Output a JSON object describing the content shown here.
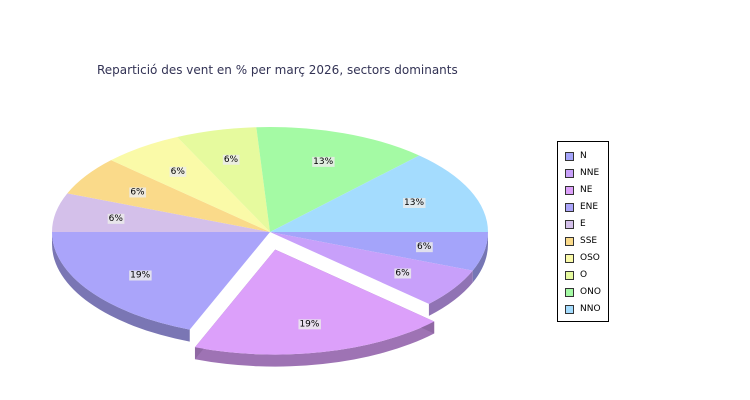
{
  "chart_data": {
    "type": "pie",
    "title": "Repartició des vent en % per març 2026, sectors dominants",
    "categories": [
      "N",
      "NNE",
      "NE",
      "ENE",
      "E",
      "SSE",
      "OSO",
      "O",
      "ONO",
      "NNO"
    ],
    "values": [
      6,
      6,
      19,
      19,
      6,
      6,
      6,
      6,
      13,
      13
    ],
    "labels": [
      "6%",
      "6%",
      "19%",
      "19%",
      "6%",
      "6%",
      "6%",
      "6%",
      "13%",
      "13%"
    ],
    "colors": [
      "#a4a4fa",
      "#c8a0fa",
      "#dca0fa",
      "#aaa4fa",
      "#d4c0ea",
      "#fada8a",
      "#fafaa8",
      "#e6fa9e",
      "#a4faa4",
      "#a4dcfe"
    ],
    "exploded": "NE",
    "legend_position": "right",
    "style": "3d"
  }
}
